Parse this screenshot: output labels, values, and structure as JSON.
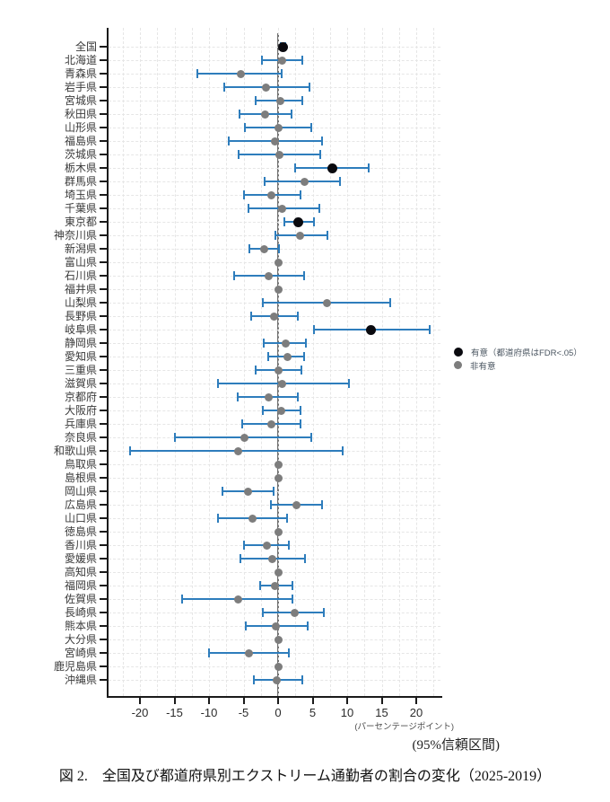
{
  "figure": {
    "caption": "図 2.　全国及び都道府県別エクストリーム通勤者の割合の変化（2025-2019）",
    "ci_note": "(95%信頼区間)",
    "axis_unit": "(パーセンテージポイント)"
  },
  "legend": {
    "significant": "有意（都道府県はFDR<.05）",
    "not_significant": "非有意"
  },
  "colors": {
    "ci_bar": "#2e7dbc",
    "dot_significant": "#0a0a0f",
    "dot_not_significant": "#7d7d7d",
    "zero_line": "#6f6f6f",
    "grid": "#e6e6e6",
    "axis": "#1a1a1a"
  },
  "chart_data": {
    "type": "scatter",
    "subtype": "forest-plot-dot-with-95ci",
    "xlabel": "(パーセンテージポイント)",
    "xlim": [
      -24.5,
      23.5
    ],
    "x_ticks": [
      -20,
      -15,
      -10,
      -5,
      0,
      5,
      10,
      15,
      20
    ],
    "grid": "dashed-light",
    "legend_position": "right-middle",
    "rows": [
      {
        "label": "全国",
        "value": 0.7,
        "lo": 0.4,
        "hi": 1.1,
        "significant": true
      },
      {
        "label": "北海道",
        "value": 0.6,
        "lo": -2.4,
        "hi": 3.5,
        "significant": false
      },
      {
        "label": "青森県",
        "value": -5.4,
        "lo": -11.7,
        "hi": 0.5,
        "significant": false
      },
      {
        "label": "岩手県",
        "value": -1.8,
        "lo": -7.8,
        "hi": 4.5,
        "significant": false
      },
      {
        "label": "宮城県",
        "value": 0.3,
        "lo": -3.2,
        "hi": 3.5,
        "significant": false
      },
      {
        "label": "秋田県",
        "value": -1.9,
        "lo": -5.6,
        "hi": 1.9,
        "significant": false
      },
      {
        "label": "山形県",
        "value": 0.0,
        "lo": -4.8,
        "hi": 4.8,
        "significant": false
      },
      {
        "label": "福島県",
        "value": -0.4,
        "lo": -7.1,
        "hi": 6.3,
        "significant": false
      },
      {
        "label": "茨城県",
        "value": 0.2,
        "lo": -5.7,
        "hi": 6.1,
        "significant": false
      },
      {
        "label": "栃木県",
        "value": 7.8,
        "lo": 2.5,
        "hi": 13.1,
        "significant": true
      },
      {
        "label": "群馬県",
        "value": 3.8,
        "lo": -1.9,
        "hi": 9.0,
        "significant": false
      },
      {
        "label": "埼玉県",
        "value": -1.0,
        "lo": -4.9,
        "hi": 3.2,
        "significant": false
      },
      {
        "label": "千葉県",
        "value": 0.6,
        "lo": -4.3,
        "hi": 6.0,
        "significant": false
      },
      {
        "label": "東京都",
        "value": 2.9,
        "lo": 0.9,
        "hi": 5.2,
        "significant": true
      },
      {
        "label": "神奈川県",
        "value": 3.2,
        "lo": -0.4,
        "hi": 7.1,
        "significant": false
      },
      {
        "label": "新潟県",
        "value": -2.0,
        "lo": -4.2,
        "hi": 0.1,
        "significant": false
      },
      {
        "label": "富山県",
        "value": 0.1,
        "lo": 0.1,
        "hi": 0.1,
        "significant": false
      },
      {
        "label": "石川県",
        "value": -1.3,
        "lo": -6.3,
        "hi": 3.8,
        "significant": false
      },
      {
        "label": "福井県",
        "value": 0.1,
        "lo": 0.1,
        "hi": 0.1,
        "significant": false
      },
      {
        "label": "山梨県",
        "value": 7.1,
        "lo": -2.2,
        "hi": 16.2,
        "significant": false
      },
      {
        "label": "長野県",
        "value": -0.6,
        "lo": -3.9,
        "hi": 2.8,
        "significant": false
      },
      {
        "label": "岐阜県",
        "value": 13.5,
        "lo": 5.2,
        "hi": 21.9,
        "significant": true
      },
      {
        "label": "静岡県",
        "value": 1.1,
        "lo": -2.1,
        "hi": 4.0,
        "significant": false
      },
      {
        "label": "愛知県",
        "value": 1.3,
        "lo": -1.4,
        "hi": 3.8,
        "significant": false
      },
      {
        "label": "三重県",
        "value": 0.1,
        "lo": -3.2,
        "hi": 3.4,
        "significant": false
      },
      {
        "label": "滋賀県",
        "value": 0.6,
        "lo": -8.7,
        "hi": 10.2,
        "significant": false
      },
      {
        "label": "京都府",
        "value": -1.4,
        "lo": -5.8,
        "hi": 2.9,
        "significant": false
      },
      {
        "label": "大阪府",
        "value": 0.4,
        "lo": -2.2,
        "hi": 3.2,
        "significant": false
      },
      {
        "label": "兵庫県",
        "value": -1.0,
        "lo": -5.2,
        "hi": 3.2,
        "significant": false
      },
      {
        "label": "奈良県",
        "value": -4.9,
        "lo": -14.9,
        "hi": 4.8,
        "significant": false
      },
      {
        "label": "和歌山県",
        "value": -5.8,
        "lo": -21.4,
        "hi": 9.3,
        "significant": false
      },
      {
        "label": "鳥取県",
        "value": 0.1,
        "lo": 0.1,
        "hi": 0.1,
        "significant": false
      },
      {
        "label": "島根県",
        "value": 0.1,
        "lo": 0.1,
        "hi": 0.1,
        "significant": false
      },
      {
        "label": "岡山県",
        "value": -4.3,
        "lo": -8.1,
        "hi": -0.6,
        "significant": false
      },
      {
        "label": "広島県",
        "value": 2.6,
        "lo": -1.1,
        "hi": 6.3,
        "significant": false
      },
      {
        "label": "山口県",
        "value": -3.7,
        "lo": -8.7,
        "hi": 1.3,
        "significant": false
      },
      {
        "label": "徳島県",
        "value": 0.1,
        "lo": 0.1,
        "hi": 0.1,
        "significant": false
      },
      {
        "label": "香川県",
        "value": -1.6,
        "lo": -5.0,
        "hi": 1.6,
        "significant": false
      },
      {
        "label": "愛媛県",
        "value": -0.9,
        "lo": -5.5,
        "hi": 3.9,
        "significant": false
      },
      {
        "label": "高知県",
        "value": 0.1,
        "lo": 0.1,
        "hi": 0.1,
        "significant": false
      },
      {
        "label": "福岡県",
        "value": -0.4,
        "lo": -2.6,
        "hi": 2.1,
        "significant": false
      },
      {
        "label": "佐賀県",
        "value": -5.8,
        "lo": -13.9,
        "hi": 2.1,
        "significant": false
      },
      {
        "label": "長崎県",
        "value": 2.4,
        "lo": -2.2,
        "hi": 6.6,
        "significant": false
      },
      {
        "label": "熊本県",
        "value": -0.3,
        "lo": -4.7,
        "hi": 4.3,
        "significant": false
      },
      {
        "label": "大分県",
        "value": 0.1,
        "lo": 0.1,
        "hi": 0.1,
        "significant": false
      },
      {
        "label": "宮崎県",
        "value": -4.2,
        "lo": -10.0,
        "hi": 1.5,
        "significant": false
      },
      {
        "label": "鹿児島県",
        "value": 0.1,
        "lo": 0.1,
        "hi": 0.1,
        "significant": false
      },
      {
        "label": "沖縄県",
        "value": -0.2,
        "lo": -3.5,
        "hi": 3.5,
        "significant": false
      }
    ]
  }
}
